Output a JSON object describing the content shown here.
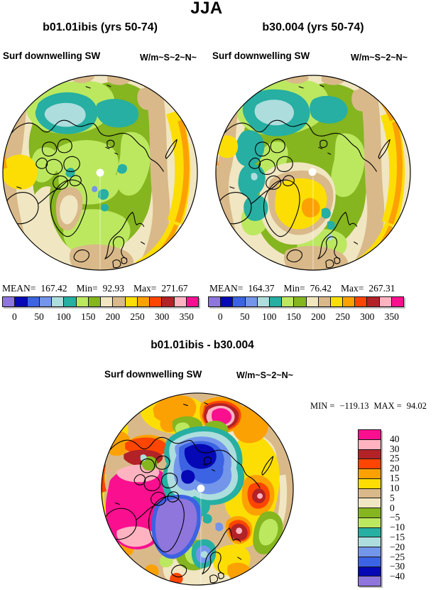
{
  "header": {
    "title": "JJA"
  },
  "panels": {
    "left": {
      "title": "b01.01ibis (yrs 50-74)",
      "variable": "Surf downwelling SW",
      "units": "W/m~S~2~N~",
      "stats": {
        "mean_label": "MEAN=",
        "mean": "167.42",
        "min_label": "Min=",
        "min": "92.93",
        "max_label": "Max=",
        "max": "271.67"
      }
    },
    "right": {
      "title": "b30.004 (yrs 50-74)",
      "variable": "Surf downwelling SW",
      "units": "W/m~S~2~N~",
      "stats": {
        "mean_label": "MEAN=",
        "mean": "164.37",
        "min_label": "Min=",
        "min": "76.42",
        "max_label": "Max=",
        "max": "267.31"
      }
    },
    "diff": {
      "title": "b01.01ibis - b30.004",
      "variable": "Surf downwelling SW",
      "units": "W/m~S~2~N~",
      "stats": {
        "min_label": "MIN =",
        "min": "−119.13",
        "max_label": "MAX =",
        "max": "94.02"
      }
    }
  },
  "colorbar_abs": {
    "colors": [
      "#8F76DC",
      "#0508B4",
      "#3B63E3",
      "#7395EA",
      "#AEDDDE",
      "#26AFA2",
      "#BCE860",
      "#85B51F",
      "#F0E6C2",
      "#D9B989",
      "#FCDE04",
      "#FCA103",
      "#FE4502",
      "#B22226",
      "#FFB3C1",
      "#FA0F8F"
    ],
    "tick_labels": [
      "0",
      "50",
      "100",
      "150",
      "200",
      "250",
      "300",
      "350"
    ]
  },
  "colorbar_diff": {
    "colors": [
      "#FA0F8F",
      "#FFB3C1",
      "#B22226",
      "#FE4502",
      "#FCA103",
      "#FCDE04",
      "#D9B989",
      "#F0E6C2",
      "#85B51F",
      "#BCE860",
      "#26AFA2",
      "#AEDDDE",
      "#7395EA",
      "#3B63E3",
      "#0508B4",
      "#8F76DC"
    ],
    "tick_labels": [
      "40",
      "30",
      "25",
      "20",
      "15",
      "10",
      "5",
      "0",
      "−5",
      "−10",
      "−15",
      "−20",
      "−25",
      "−30",
      "−40"
    ]
  },
  "chart_data": [
    {
      "type": "heatmap",
      "subtype": "polar-stereographic-filled-contour-map",
      "title": "b01.01ibis (yrs 50-74)",
      "season": "JJA",
      "variable": "Surf downwelling SW",
      "units": "W/m~S~2~N~",
      "stats": {
        "mean": 167.42,
        "min": 92.93,
        "max": 271.67
      },
      "contour_levels": [
        0,
        25,
        50,
        75,
        100,
        125,
        150,
        175,
        200,
        225,
        250,
        275,
        300,
        325,
        350
      ],
      "labeled_ticks": [
        0,
        50,
        100,
        150,
        200,
        250,
        300,
        350
      ],
      "palette_low_to_high": [
        "#8F76DC",
        "#0508B4",
        "#3B63E3",
        "#7395EA",
        "#AEDDDE",
        "#26AFA2",
        "#BCE860",
        "#85B51F",
        "#F0E6C2",
        "#D9B989",
        "#FCDE04",
        "#FCA103",
        "#FE4502",
        "#B22226",
        "#FFB3C1",
        "#FA0F8F"
      ],
      "legend_position": "below",
      "notes": "Arctic polar cap view; greens over central Arctic and land, teal/cyan lows over East Siberian sea, cream/tan midlatitude bands, yellow-orange highs at map rim"
    },
    {
      "type": "heatmap",
      "subtype": "polar-stereographic-filled-contour-map",
      "title": "b30.004 (yrs 50-74)",
      "season": "JJA",
      "variable": "Surf downwelling SW",
      "units": "W/m~S~2~N~",
      "stats": {
        "mean": 164.37,
        "min": 76.42,
        "max": 267.31
      },
      "contour_levels": [
        0,
        25,
        50,
        75,
        100,
        125,
        150,
        175,
        200,
        225,
        250,
        275,
        300,
        325,
        350
      ],
      "labeled_ticks": [
        0,
        50,
        100,
        150,
        200,
        250,
        300,
        350
      ],
      "palette_low_to_high": [
        "#8F76DC",
        "#0508B4",
        "#3B63E3",
        "#7395EA",
        "#AEDDDE",
        "#26AFA2",
        "#BCE860",
        "#85B51F",
        "#F0E6C2",
        "#D9B989",
        "#FCDE04",
        "#FCA103",
        "#FE4502",
        "#B22226",
        "#FFB3C1",
        "#FA0F8F"
      ],
      "legend_position": "below",
      "notes": "Similar to b01.01ibis but teal lows extend down Bering side and a yellow high sits over Greenland"
    },
    {
      "type": "heatmap",
      "subtype": "polar-stereographic-filled-contour-difference-map",
      "title": "b01.01ibis - b30.004",
      "season": "JJA",
      "variable": "Surf downwelling SW",
      "units": "W/m~S~2~N~",
      "stats": {
        "min": -119.13,
        "max": 94.02
      },
      "contour_levels": [
        -40,
        -30,
        -25,
        -20,
        -15,
        -10,
        -5,
        0,
        5,
        10,
        15,
        20,
        25,
        30,
        40
      ],
      "palette_low_to_high": [
        "#8F76DC",
        "#0508B4",
        "#3B63E3",
        "#7395EA",
        "#AEDDDE",
        "#26AFA2",
        "#BCE860",
        "#85B51F",
        "#F0E6C2",
        "#D9B989",
        "#FCDE04",
        "#FCA103",
        "#FE4502",
        "#B22226",
        "#FFB3C1",
        "#FA0F8F"
      ],
      "legend_position": "right",
      "notes": "Strong negative (blue/purple) anomaly over central Arctic Ocean and Greenland; strong positive (magenta/pink) over northern Canada; orange/yellow positives around periphery"
    }
  ]
}
